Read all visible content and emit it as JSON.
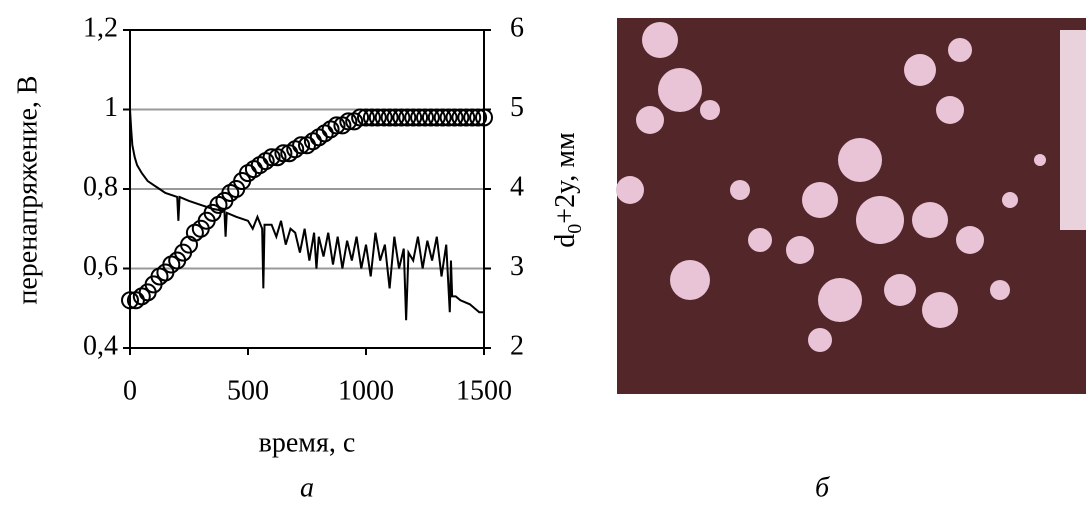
{
  "chart_data": {
    "type": "line",
    "ylabel": "перенапряжение, В",
    "y2label": {
      "main": "d",
      "sub": "0",
      "rest": "+2y, мм"
    },
    "xlabel": "время, с",
    "caption": "а",
    "xlim": [
      0,
      1500
    ],
    "xticks": [
      0,
      500,
      1000,
      1500
    ],
    "ylim": [
      0.4,
      1.2
    ],
    "yticks": [
      {
        "value": 0.4,
        "label": "0,4"
      },
      {
        "value": 0.6,
        "label": "0,6"
      },
      {
        "value": 0.8,
        "label": "0,8"
      },
      1,
      {
        "value": 1.2,
        "label": "1,2"
      }
    ],
    "y2lim": [
      2,
      6
    ],
    "y2ticks": [
      2,
      3,
      4,
      5,
      6
    ],
    "grid": true,
    "series": [
      {
        "color": "#000000",
        "marker": "none",
        "x": [
          0,
          5,
          10,
          20,
          30,
          50,
          75,
          100,
          125,
          150,
          175,
          200,
          205,
          210,
          250,
          300,
          350,
          400,
          405,
          410,
          450,
          500,
          520,
          540,
          560,
          565,
          570,
          600,
          620,
          640,
          660,
          680,
          700,
          720,
          740,
          760,
          780,
          790,
          800,
          820,
          840,
          860,
          880,
          900,
          920,
          940,
          960,
          980,
          1000,
          1020,
          1040,
          1060,
          1080,
          1100,
          1120,
          1140,
          1160,
          1170,
          1180,
          1200,
          1220,
          1240,
          1260,
          1280,
          1300,
          1320,
          1340,
          1355,
          1360,
          1365,
          1380,
          1400,
          1440,
          1480,
          1500
        ],
        "values": [
          1.0,
          0.95,
          0.91,
          0.88,
          0.86,
          0.84,
          0.82,
          0.81,
          0.8,
          0.79,
          0.785,
          0.78,
          0.72,
          0.78,
          0.77,
          0.76,
          0.75,
          0.745,
          0.68,
          0.74,
          0.73,
          0.72,
          0.7,
          0.73,
          0.7,
          0.55,
          0.71,
          0.71,
          0.68,
          0.72,
          0.66,
          0.7,
          0.69,
          0.64,
          0.7,
          0.62,
          0.69,
          0.6,
          0.68,
          0.63,
          0.69,
          0.61,
          0.68,
          0.6,
          0.67,
          0.62,
          0.68,
          0.6,
          0.66,
          0.58,
          0.69,
          0.62,
          0.66,
          0.55,
          0.68,
          0.6,
          0.65,
          0.47,
          0.64,
          0.62,
          0.68,
          0.6,
          0.67,
          0.62,
          0.68,
          0.58,
          0.66,
          0.49,
          0.62,
          0.53,
          0.53,
          0.52,
          0.51,
          0.49,
          0.49
        ]
      },
      {
        "color": "#000000",
        "marker": "circle",
        "axis": "y2",
        "x": [
          0,
          25,
          50,
          75,
          100,
          125,
          150,
          175,
          200,
          225,
          250,
          275,
          300,
          325,
          350,
          375,
          400,
          425,
          450,
          475,
          500,
          525,
          550,
          575,
          600,
          625,
          650,
          675,
          700,
          725,
          750,
          775,
          800,
          825,
          850,
          875,
          900,
          925,
          950,
          975,
          1000,
          1025,
          1050,
          1075,
          1100,
          1125,
          1150,
          1175,
          1200,
          1225,
          1250,
          1275,
          1300,
          1325,
          1350,
          1375,
          1400,
          1425,
          1450,
          1475,
          1500
        ],
        "values": [
          2.6,
          2.6,
          2.65,
          2.7,
          2.8,
          2.9,
          2.95,
          3.05,
          3.1,
          3.2,
          3.3,
          3.45,
          3.5,
          3.6,
          3.7,
          3.8,
          3.85,
          3.95,
          4.0,
          4.1,
          4.2,
          4.25,
          4.3,
          4.35,
          4.4,
          4.4,
          4.45,
          4.45,
          4.5,
          4.55,
          4.55,
          4.6,
          4.65,
          4.7,
          4.75,
          4.8,
          4.8,
          4.85,
          4.85,
          4.9,
          4.9,
          4.9,
          4.9,
          4.9,
          4.9,
          4.9,
          4.9,
          4.9,
          4.9,
          4.9,
          4.9,
          4.9,
          4.9,
          4.9,
          4.9,
          4.9,
          4.9,
          4.9,
          4.9,
          4.9,
          4.9
        ]
      }
    ]
  },
  "photo_caption": "б"
}
